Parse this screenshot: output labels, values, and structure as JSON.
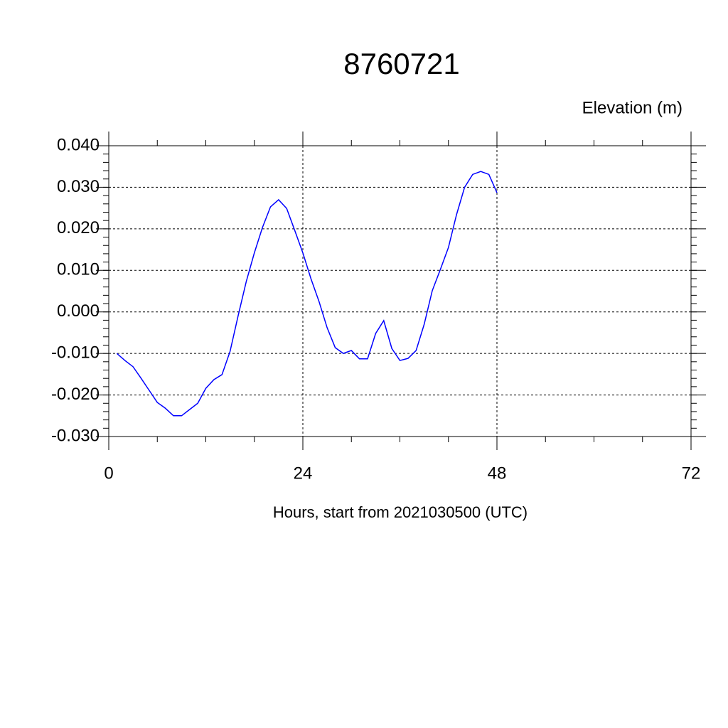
{
  "chart_data": {
    "type": "line",
    "title": "8760721",
    "subtitle": "Elevation (m)",
    "x_label": "Hours, start from 2021030500 (UTC)",
    "x": [
      1,
      2,
      3,
      4,
      5,
      6,
      7,
      8,
      9,
      10,
      11,
      12,
      13,
      14,
      15,
      16,
      17,
      18,
      19,
      20,
      21,
      22,
      23,
      24,
      25,
      26,
      27,
      28,
      29,
      30,
      31,
      32,
      33,
      34,
      35,
      36,
      37,
      38,
      39,
      40,
      41,
      42,
      43,
      44,
      45,
      46,
      47,
      48
    ],
    "series": [
      {
        "name": "8760721",
        "color": "#0000ff",
        "values": [
          -0.01,
          -0.0117,
          -0.0132,
          -0.016,
          -0.0189,
          -0.0218,
          -0.0232,
          -0.025,
          -0.025,
          -0.0235,
          -0.022,
          -0.0184,
          -0.0163,
          -0.0151,
          -0.0095,
          -0.0009,
          0.0073,
          0.0142,
          0.0203,
          0.0253,
          0.027,
          0.0249,
          0.0196,
          0.0142,
          0.008,
          0.0025,
          -0.0038,
          -0.0086,
          -0.01,
          -0.0093,
          -0.0113,
          -0.0113,
          -0.0052,
          -0.0021,
          -0.0088,
          -0.0117,
          -0.0112,
          -0.0093,
          -0.003,
          0.0051,
          0.0102,
          0.0155,
          0.0234,
          0.03,
          0.0331,
          0.0338,
          0.0331,
          0.0287
        ]
      }
    ],
    "xlim": [
      0,
      72
    ],
    "xticks": [
      0,
      24,
      48,
      72
    ],
    "ylim": [
      -0.03,
      0.04
    ],
    "yticks": [
      {
        "value": -0.03,
        "label": "-0.030"
      },
      {
        "value": -0.02,
        "label": "-0.020"
      },
      {
        "value": -0.01,
        "label": "-0.010"
      },
      {
        "value": 0,
        "label": "0.000"
      },
      {
        "value": 0.01,
        "label": "0.010"
      },
      {
        "value": 0.02,
        "label": "0.020"
      },
      {
        "value": 0.03,
        "label": "0.030"
      },
      {
        "value": 0.04,
        "label": "0.040"
      }
    ],
    "grid": true
  }
}
